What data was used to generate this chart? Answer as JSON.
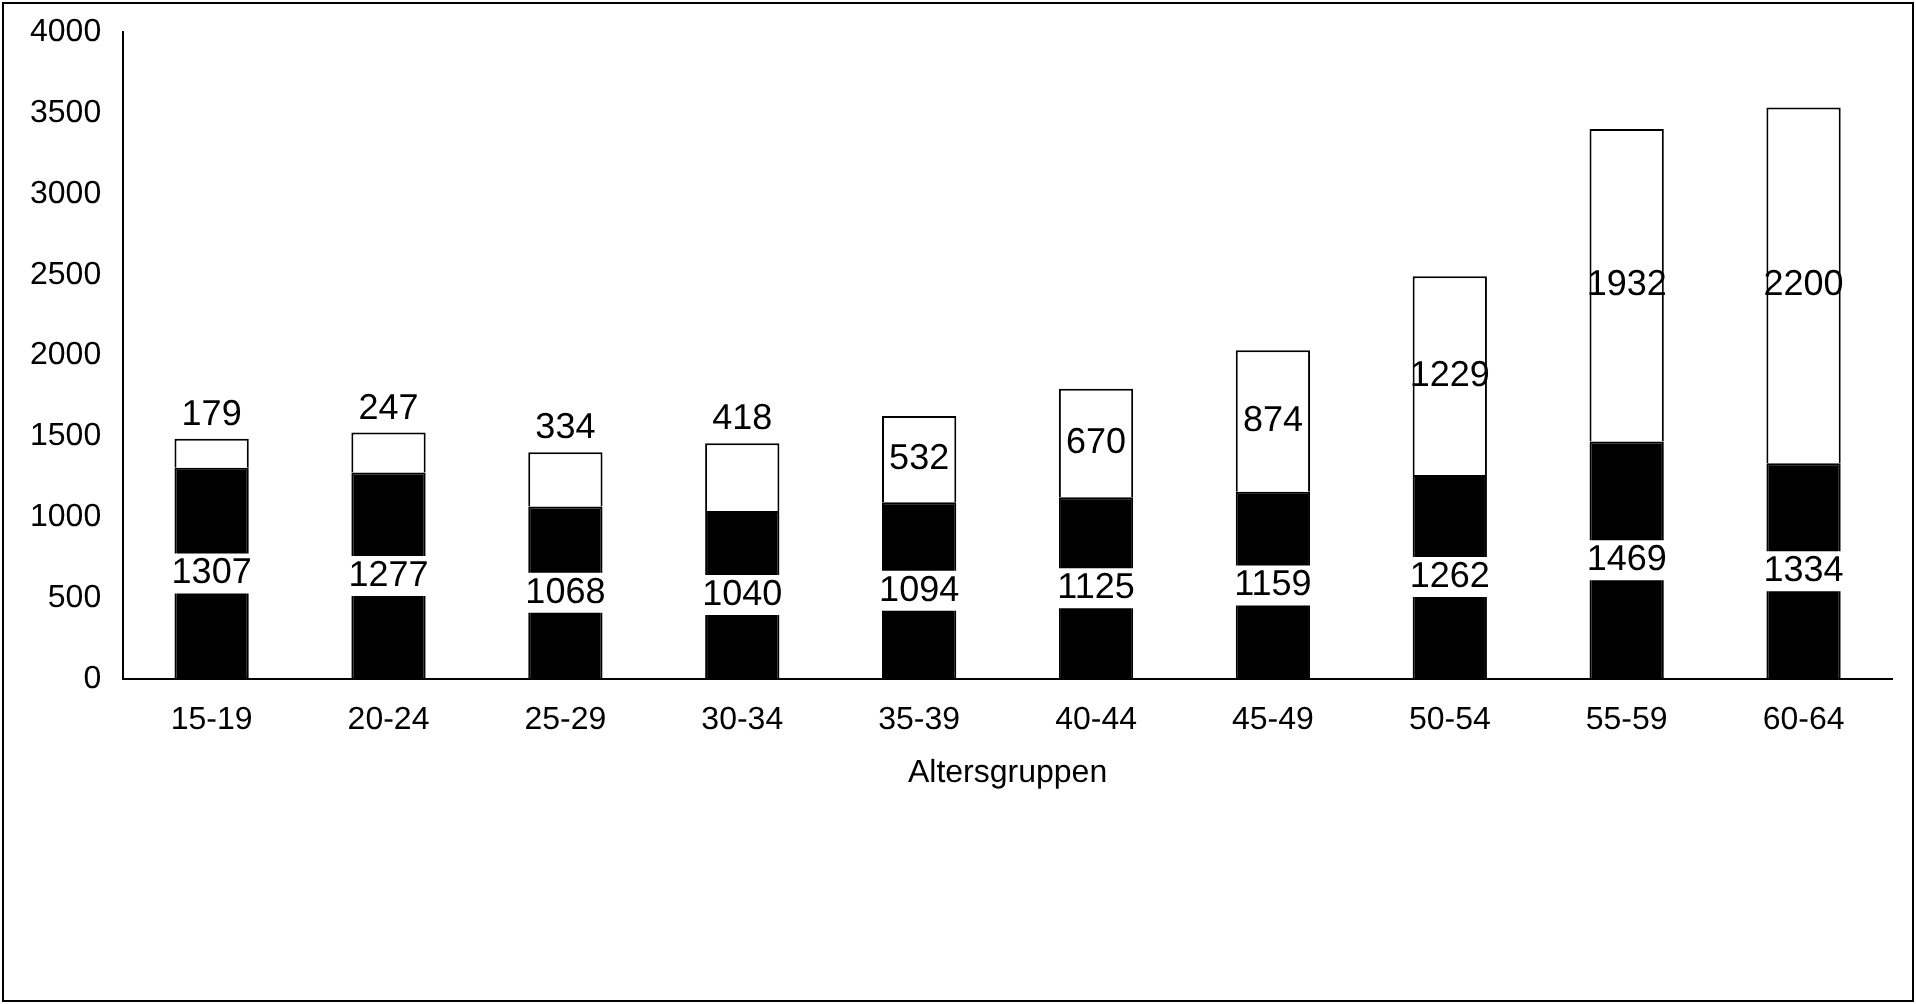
{
  "chart_data": {
    "type": "bar",
    "stacked": true,
    "xlabel": "Altersgruppen",
    "categories": [
      "15-19",
      "20-24",
      "25-29",
      "30-34",
      "35-39",
      "40-44",
      "45-49",
      "50-54",
      "55-59",
      "60-64"
    ],
    "series": [
      {
        "color": "#000000",
        "values": [
          1307,
          1277,
          1068,
          1040,
          1094,
          1125,
          1159,
          1262,
          1469,
          1334
        ]
      },
      {
        "color": "#ffffff",
        "values": [
          179,
          247,
          334,
          418,
          532,
          670,
          874,
          1229,
          1932,
          2200
        ]
      }
    ],
    "ylim": [
      0,
      4000
    ],
    "yticks": [
      0,
      500,
      1000,
      1500,
      2000,
      2500,
      3000,
      3500,
      4000
    ],
    "grid": false,
    "legend": false,
    "data_labels": true
  }
}
